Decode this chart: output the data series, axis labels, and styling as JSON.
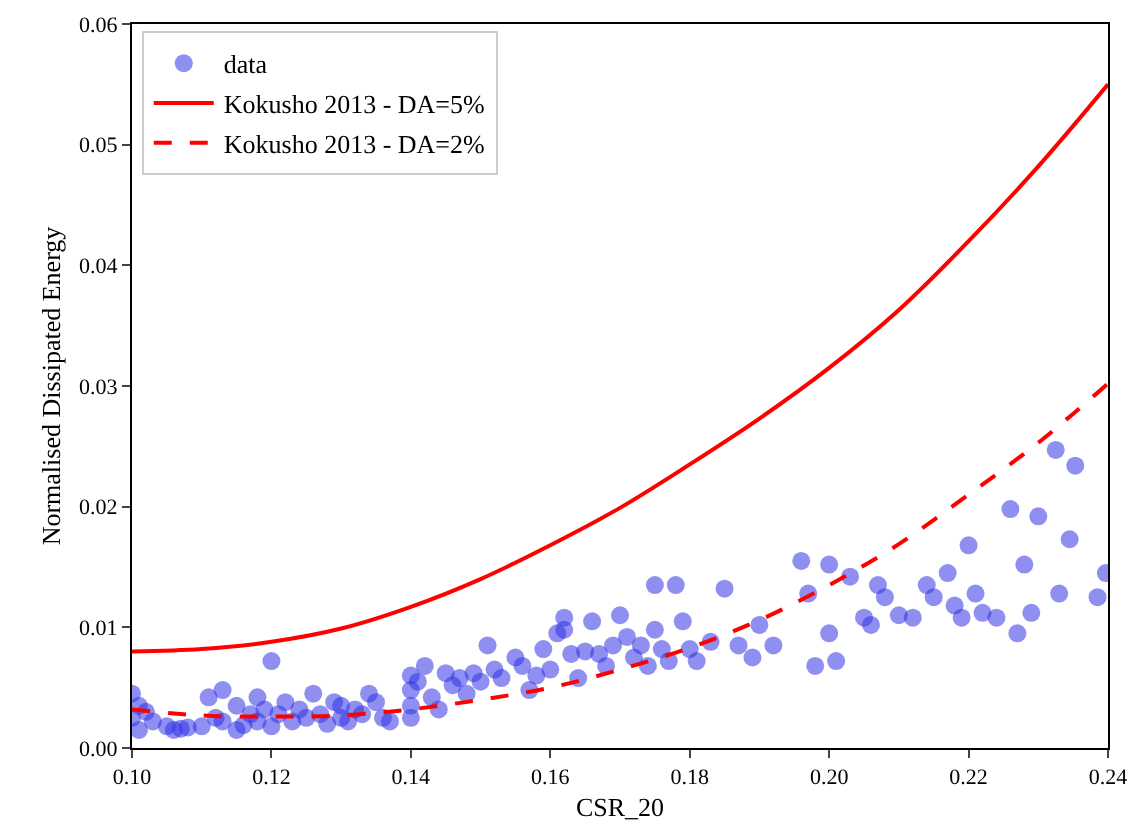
{
  "chart_data": {
    "type": "scatter",
    "xlabel": "CSR_20",
    "ylabel": "Normalised Dissipated Energy",
    "xlim": [
      0.1,
      0.24
    ],
    "xticks": [
      {
        "value": 0.1,
        "label": "0.10"
      },
      0.12,
      0.14,
      0.16,
      0.18,
      {
        "value": 0.2,
        "label": "0.20"
      },
      0.22,
      0.24
    ],
    "ylim": [
      0,
      0.06
    ],
    "yticks": [
      {
        "value": 0,
        "label": "0.00"
      },
      0.01,
      0.02,
      0.03,
      0.04,
      0.05,
      0.06
    ],
    "grid": false,
    "legend": "top left",
    "series": [
      {
        "name": "data",
        "color": "#3333e6",
        "marker": "circle",
        "x": [
          0.1,
          0.1,
          0.101,
          0.101,
          0.102,
          0.103,
          0.105,
          0.106,
          0.107,
          0.108,
          0.11,
          0.111,
          0.112,
          0.113,
          0.113,
          0.115,
          0.115,
          0.116,
          0.117,
          0.118,
          0.118,
          0.119,
          0.12,
          0.12,
          0.121,
          0.122,
          0.123,
          0.124,
          0.125,
          0.126,
          0.127,
          0.128,
          0.129,
          0.13,
          0.13,
          0.131,
          0.132,
          0.133,
          0.134,
          0.135,
          0.136,
          0.137,
          0.14,
          0.14,
          0.14,
          0.14,
          0.141,
          0.142,
          0.143,
          0.144,
          0.145,
          0.146,
          0.147,
          0.148,
          0.149,
          0.15,
          0.151,
          0.152,
          0.153,
          0.155,
          0.156,
          0.157,
          0.158,
          0.159,
          0.16,
          0.161,
          0.162,
          0.162,
          0.163,
          0.164,
          0.165,
          0.166,
          0.167,
          0.168,
          0.169,
          0.17,
          0.171,
          0.172,
          0.173,
          0.174,
          0.175,
          0.175,
          0.176,
          0.177,
          0.178,
          0.179,
          0.18,
          0.181,
          0.183,
          0.185,
          0.187,
          0.189,
          0.19,
          0.192,
          0.196,
          0.197,
          0.198,
          0.2,
          0.2,
          0.201,
          0.203,
          0.205,
          0.206,
          0.207,
          0.208,
          0.21,
          0.212,
          0.214,
          0.215,
          0.217,
          0.218,
          0.219,
          0.22,
          0.221,
          0.222,
          0.224,
          0.226,
          0.227,
          0.228,
          0.229,
          0.23,
          0.2325,
          0.233,
          0.2345,
          0.2353,
          0.2385,
          0.2397
        ],
        "values": [
          0.0045,
          0.0025,
          0.0035,
          0.0015,
          0.003,
          0.0022,
          0.0018,
          0.0015,
          0.0016,
          0.0017,
          0.0018,
          0.0042,
          0.0025,
          0.0048,
          0.0022,
          0.0015,
          0.0035,
          0.0019,
          0.0028,
          0.0022,
          0.0042,
          0.0032,
          0.0072,
          0.0018,
          0.0028,
          0.0038,
          0.0022,
          0.0032,
          0.0025,
          0.0045,
          0.0028,
          0.002,
          0.0038,
          0.0025,
          0.0035,
          0.0022,
          0.0032,
          0.0028,
          0.0045,
          0.0038,
          0.0025,
          0.0022,
          0.006,
          0.0048,
          0.0035,
          0.0025,
          0.0055,
          0.0068,
          0.0042,
          0.0032,
          0.0062,
          0.0052,
          0.0058,
          0.0045,
          0.0062,
          0.0055,
          0.0085,
          0.0065,
          0.0058,
          0.0075,
          0.0068,
          0.0048,
          0.006,
          0.0082,
          0.0065,
          0.0095,
          0.0108,
          0.0098,
          0.0078,
          0.0058,
          0.008,
          0.0105,
          0.0078,
          0.0068,
          0.0085,
          0.011,
          0.0092,
          0.0075,
          0.0085,
          0.0068,
          0.0135,
          0.0098,
          0.0082,
          0.0072,
          0.0135,
          0.0105,
          0.0082,
          0.0072,
          0.0088,
          0.0132,
          0.0085,
          0.0075,
          0.0102,
          0.0085,
          0.0155,
          0.0128,
          0.0068,
          0.0152,
          0.0095,
          0.0072,
          0.0142,
          0.0108,
          0.0102,
          0.0135,
          0.0125,
          0.011,
          0.0108,
          0.0135,
          0.0125,
          0.0145,
          0.0118,
          0.0108,
          0.0168,
          0.0128,
          0.0112,
          0.0108,
          0.0198,
          0.0095,
          0.0152,
          0.0112,
          0.0192,
          0.0247,
          0.0128,
          0.0173,
          0.0234,
          0.0125,
          0.0145
        ]
      },
      {
        "name": "Kokusho 2013 - DA=5%",
        "type": "line",
        "color": "#ff0000",
        "line_style": "solid",
        "marker": "none",
        "x": [
          0.1,
          0.11,
          0.12,
          0.13,
          0.14,
          0.15,
          0.16,
          0.17,
          0.18,
          0.19,
          0.2,
          0.21,
          0.22,
          0.23,
          0.24
        ],
        "values": [
          0.008,
          0.0082,
          0.0088,
          0.0099,
          0.0117,
          0.014,
          0.0168,
          0.0199,
          0.0235,
          0.0273,
          0.0315,
          0.0363,
          0.042,
          0.0482,
          0.055
        ]
      },
      {
        "name": "Kokusho 2013 - DA=2%",
        "type": "line",
        "color": "#ff0000",
        "line_style": "dashed",
        "marker": "none",
        "x": [
          0.1,
          0.11,
          0.12,
          0.13,
          0.14,
          0.15,
          0.16,
          0.17,
          0.18,
          0.19,
          0.2,
          0.21,
          0.22,
          0.23,
          0.24
        ],
        "values": [
          0.0032,
          0.0027,
          0.0026,
          0.0027,
          0.0032,
          0.004,
          0.005,
          0.0065,
          0.0083,
          0.0106,
          0.0135,
          0.0169,
          0.021,
          0.0253,
          0.0302
        ]
      }
    ]
  }
}
